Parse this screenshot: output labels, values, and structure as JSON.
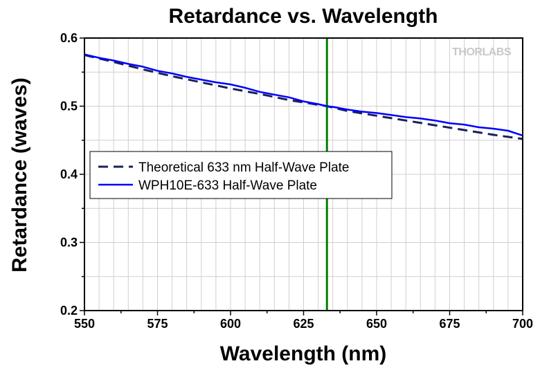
{
  "chart_data": {
    "type": "line",
    "title": "Retardance vs. Wavelength",
    "xlabel": "Wavelength (nm)",
    "ylabel": "Retardance (waves)",
    "xlim": [
      550,
      700
    ],
    "ylim": [
      0.2,
      0.6
    ],
    "x_ticks": [
      "550",
      "575",
      "600",
      "625",
      "650",
      "675",
      "700"
    ],
    "y_ticks": [
      "0.2",
      "0.3",
      "0.4",
      "0.5",
      "0.6"
    ],
    "grid": true,
    "legend_position": "middle-left",
    "watermark": "THORLABS",
    "reference_line": {
      "x": 633,
      "color": "#008000"
    },
    "series": [
      {
        "name": "Theoretical 633 nm Half-Wave Plate",
        "style": "dashed",
        "color": "#1a1f5a",
        "x": [
          550,
          560,
          570,
          580,
          590,
          600,
          610,
          620,
          630,
          633,
          640,
          650,
          660,
          670,
          680,
          690,
          700
        ],
        "y": [
          0.575,
          0.565,
          0.554,
          0.544,
          0.535,
          0.526,
          0.518,
          0.509,
          0.502,
          0.5,
          0.493,
          0.486,
          0.479,
          0.472,
          0.465,
          0.458,
          0.452
        ]
      },
      {
        "name": "WPH10E-633 Half-Wave Plate",
        "style": "solid",
        "color": "#0000ff",
        "x": [
          550,
          555,
          560,
          565,
          570,
          575,
          580,
          585,
          590,
          595,
          600,
          605,
          610,
          615,
          620,
          625,
          630,
          633,
          635,
          640,
          645,
          650,
          655,
          660,
          665,
          670,
          675,
          680,
          685,
          690,
          695,
          700
        ],
        "y": [
          0.576,
          0.571,
          0.567,
          0.562,
          0.558,
          0.552,
          0.548,
          0.543,
          0.539,
          0.535,
          0.532,
          0.527,
          0.521,
          0.517,
          0.513,
          0.507,
          0.503,
          0.5,
          0.499,
          0.495,
          0.492,
          0.49,
          0.487,
          0.484,
          0.482,
          0.479,
          0.475,
          0.473,
          0.469,
          0.467,
          0.464,
          0.457
        ]
      }
    ]
  }
}
